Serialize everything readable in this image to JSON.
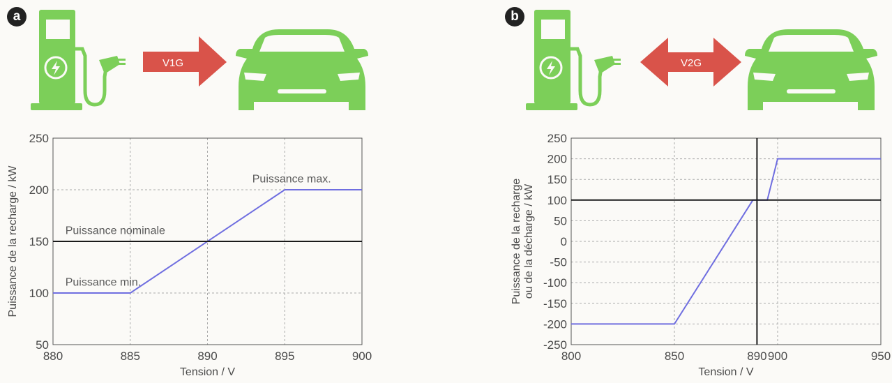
{
  "colors": {
    "green": "#7ccf59",
    "red": "#d9534a",
    "series": "#6f6ee0",
    "reference": "#1a1a1a",
    "grid": "#aaaaaa"
  },
  "panels": [
    {
      "badge": "a",
      "arrow_label": "V1G",
      "arrow_type": "right",
      "car_icon": "car-icon",
      "station_icon": "charging-station-icon"
    },
    {
      "badge": "b",
      "arrow_label": "V2G",
      "arrow_type": "double",
      "car_icon": "car-icon",
      "station_icon": "charging-station-icon"
    }
  ],
  "chart_data": [
    {
      "type": "line",
      "xlabel": "Tension / V",
      "ylabel": "Puissance de la recharge / kW",
      "xlim": [
        880,
        900
      ],
      "ylim": [
        50,
        250
      ],
      "xticks": [
        880,
        885,
        890,
        895,
        900
      ],
      "yticks": [
        50,
        100,
        150,
        200,
        250
      ],
      "grid": true,
      "series": [
        {
          "role": "power-curve",
          "x": [
            880,
            885,
            895,
            900
          ],
          "y": [
            100,
            100,
            200,
            200
          ]
        },
        {
          "role": "reference-line",
          "x": [
            880,
            900
          ],
          "y": [
            150,
            150
          ]
        }
      ],
      "annotations": [
        {
          "text": "Puissance max.",
          "x": 898,
          "y": 207
        },
        {
          "text": "Puissance nominale",
          "x": 880.8,
          "y": 157
        },
        {
          "text": "Puissance min.",
          "x": 880.8,
          "y": 107
        }
      ]
    },
    {
      "type": "line",
      "xlabel": "Tension / V",
      "ylabel": [
        "Puissance de la recharge",
        "ou de la décharge / kW"
      ],
      "xlim": [
        800,
        950
      ],
      "ylim": [
        -250,
        250
      ],
      "xticks": [
        800,
        850,
        890,
        900,
        950
      ],
      "yticks": [
        -250,
        -200,
        -150,
        -100,
        -50,
        0,
        50,
        100,
        150,
        200,
        250
      ],
      "grid": true,
      "series": [
        {
          "role": "power-curve",
          "x": [
            800,
            850,
            888,
            895,
            900,
            950
          ],
          "y": [
            -200,
            -200,
            100,
            100,
            200,
            200
          ]
        },
        {
          "role": "reference-line",
          "x": [
            800,
            950
          ],
          "y": [
            100,
            100
          ]
        },
        {
          "role": "reference-vline",
          "x": [
            890,
            890
          ],
          "y": [
            -250,
            250
          ]
        }
      ],
      "annotations": []
    }
  ]
}
